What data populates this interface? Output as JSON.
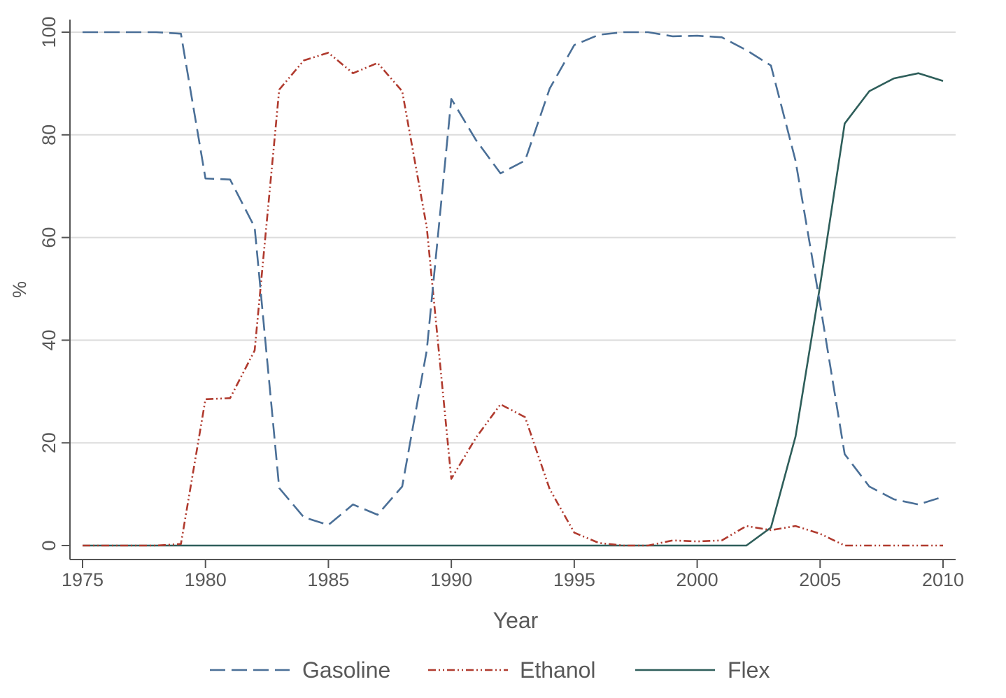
{
  "chart_data": {
    "type": "line",
    "title": "",
    "xlabel": "Year",
    "ylabel": "%",
    "xlim": [
      1975,
      2010
    ],
    "ylim": [
      0,
      100
    ],
    "x_ticks": [
      1975,
      1980,
      1985,
      1990,
      1995,
      2000,
      2005,
      2010
    ],
    "y_ticks": [
      0,
      20,
      40,
      60,
      80,
      100
    ],
    "grid": "horizontal",
    "legend_position": "bottom",
    "x": [
      1975,
      1976,
      1977,
      1978,
      1979,
      1980,
      1981,
      1982,
      1983,
      1984,
      1985,
      1986,
      1987,
      1988,
      1989,
      1990,
      1991,
      1992,
      1993,
      1994,
      1995,
      1996,
      1997,
      1998,
      1999,
      2000,
      2001,
      2002,
      2003,
      2004,
      2005,
      2006,
      2007,
      2008,
      2009,
      2010
    ],
    "series": [
      {
        "name": "Gasoline",
        "color": "#4a6f97",
        "style": "long-dash",
        "values": [
          100,
          100,
          100,
          100,
          99.7,
          71.5,
          71.3,
          62,
          11.2,
          5.5,
          4,
          8,
          6,
          11.5,
          38,
          87,
          79,
          72.5,
          75,
          89,
          97.5,
          99.5,
          100,
          100,
          99.2,
          99.3,
          99,
          96.5,
          93.5,
          75,
          47,
          17.8,
          11.5,
          9,
          8,
          9.5
        ]
      },
      {
        "name": "Ethanol",
        "color": "#b03a2e",
        "style": "dash-dot-dot",
        "values": [
          0,
          0,
          0,
          0,
          0.3,
          28.5,
          28.7,
          38,
          88.8,
          94.5,
          96,
          92,
          94,
          88.5,
          62,
          13,
          21,
          27.5,
          25,
          11,
          2.5,
          0.5,
          0,
          0,
          1,
          0.8,
          1,
          3.8,
          3,
          3.8,
          2.3,
          0,
          0,
          0,
          0,
          0
        ]
      },
      {
        "name": "Flex",
        "color": "#2e5e5a",
        "style": "solid",
        "values": [
          0,
          0,
          0,
          0,
          0,
          0,
          0,
          0,
          0,
          0,
          0,
          0,
          0,
          0,
          0,
          0,
          0,
          0,
          0,
          0,
          0,
          0,
          0,
          0,
          0,
          0,
          0,
          0,
          3.5,
          21.2,
          50.7,
          82.2,
          88.5,
          91,
          92,
          90.5
        ]
      }
    ]
  }
}
